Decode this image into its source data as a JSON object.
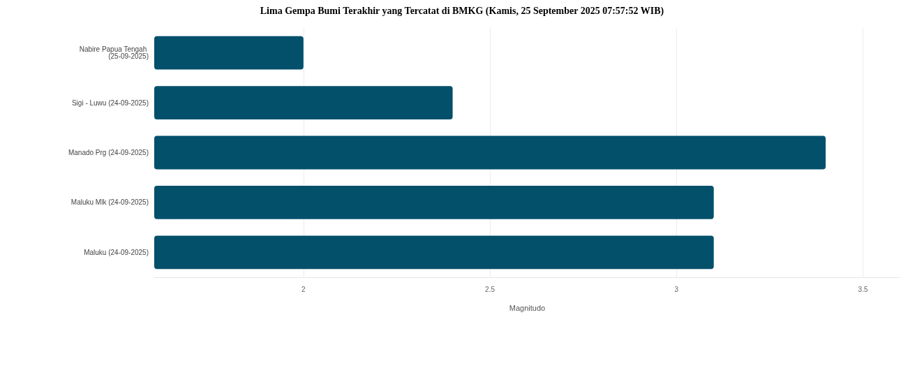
{
  "chart_data": {
    "type": "bar",
    "orientation": "horizontal",
    "title": "Lima Gempa Bumi Terakhir yang Tercatat di BMKG (Kamis, 25 September 2025 07:57:52 WIB)",
    "categories": [
      "Nabire Papua Tengah (25-09-2025)",
      "Sigi - Luwu (24-09-2025)",
      "Manado Prg (24-09-2025)",
      "Maluku Mlk (24-09-2025)",
      "Maluku (24-09-2025)"
    ],
    "values": [
      2.0,
      2.4,
      3.4,
      3.1,
      3.1
    ],
    "color": "#03506b",
    "xlabel": "Magnitudo",
    "xlim": [
      1.6,
      3.6
    ],
    "xticks": [
      2,
      2.5,
      3,
      3.5
    ],
    "grid": "x"
  }
}
